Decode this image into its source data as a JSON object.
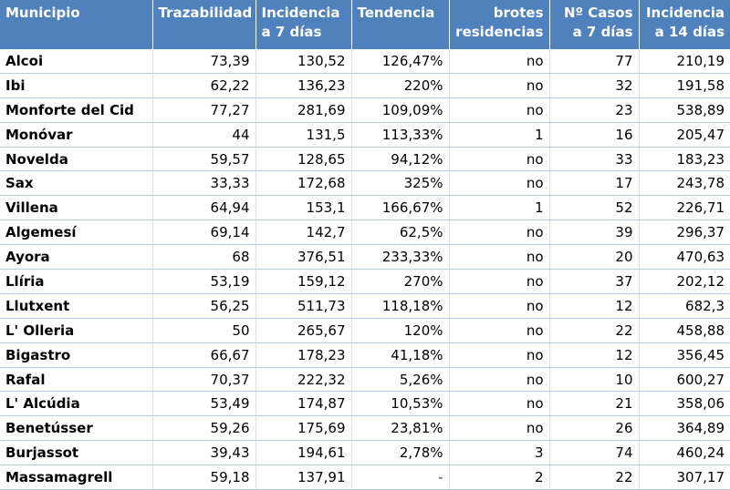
{
  "header": {
    "municipio": "Municipio",
    "trazabilidad": "Trazabilidad",
    "incidencia7_line1": "Incidencia",
    "incidencia7_line2": "a 7 días",
    "tendencia": "Tendencia",
    "brotes_line1": "brotes",
    "brotes_line2": "residencias",
    "casos_line1": "Nº Casos",
    "casos_line2": "a 7 días",
    "incidencia14_line1": "Incidencia",
    "incidencia14_line2": "a 14 días"
  },
  "rows": [
    {
      "municipio": "Alcoi",
      "trazabilidad": "73,39",
      "incidencia7": "130,52",
      "tendencia": "126,47%",
      "brotes": "no",
      "casos": "77",
      "incidencia14": "210,19"
    },
    {
      "municipio": "Ibi",
      "trazabilidad": "62,22",
      "incidencia7": "136,23",
      "tendencia": "220%",
      "brotes": "no",
      "casos": "32",
      "incidencia14": "191,58"
    },
    {
      "municipio": "Monforte del Cid",
      "trazabilidad": "77,27",
      "incidencia7": "281,69",
      "tendencia": "109,09%",
      "brotes": "no",
      "casos": "23",
      "incidencia14": "538,89"
    },
    {
      "municipio": "Monóvar",
      "trazabilidad": "44",
      "incidencia7": "131,5",
      "tendencia": "113,33%",
      "brotes": "1",
      "casos": "16",
      "incidencia14": "205,47"
    },
    {
      "municipio": "Novelda",
      "trazabilidad": "59,57",
      "incidencia7": "128,65",
      "tendencia": "94,12%",
      "brotes": "no",
      "casos": "33",
      "incidencia14": "183,23"
    },
    {
      "municipio": "Sax",
      "trazabilidad": "33,33",
      "incidencia7": "172,68",
      "tendencia": "325%",
      "brotes": "no",
      "casos": "17",
      "incidencia14": "243,78"
    },
    {
      "municipio": "Villena",
      "trazabilidad": "64,94",
      "incidencia7": "153,1",
      "tendencia": "166,67%",
      "brotes": "1",
      "casos": "52",
      "incidencia14": "226,71"
    },
    {
      "municipio": "Algemesí",
      "trazabilidad": "69,14",
      "incidencia7": "142,7",
      "tendencia": "62,5%",
      "brotes": "no",
      "casos": "39",
      "incidencia14": "296,37"
    },
    {
      "municipio": "Ayora",
      "trazabilidad": "68",
      "incidencia7": "376,51",
      "tendencia": "233,33%",
      "brotes": "no",
      "casos": "20",
      "incidencia14": "470,63"
    },
    {
      "municipio": "Llíria",
      "trazabilidad": "53,19",
      "incidencia7": "159,12",
      "tendencia": "270%",
      "brotes": "no",
      "casos": "37",
      "incidencia14": "202,12"
    },
    {
      "municipio": "Llutxent",
      "trazabilidad": "56,25",
      "incidencia7": "511,73",
      "tendencia": "118,18%",
      "brotes": "no",
      "casos": "12",
      "incidencia14": "682,3"
    },
    {
      "municipio": "L' Olleria",
      "trazabilidad": "50",
      "incidencia7": "265,67",
      "tendencia": "120%",
      "brotes": "no",
      "casos": "22",
      "incidencia14": "458,88"
    },
    {
      "municipio": "Bigastro",
      "trazabilidad": "66,67",
      "incidencia7": "178,23",
      "tendencia": "41,18%",
      "brotes": "no",
      "casos": "12",
      "incidencia14": "356,45"
    },
    {
      "municipio": "Rafal",
      "trazabilidad": "70,37",
      "incidencia7": "222,32",
      "tendencia": "5,26%",
      "brotes": "no",
      "casos": "10",
      "incidencia14": "600,27"
    },
    {
      "municipio": "L' Alcúdia",
      "trazabilidad": "53,49",
      "incidencia7": "174,87",
      "tendencia": "10,53%",
      "brotes": "no",
      "casos": "21",
      "incidencia14": "358,06"
    },
    {
      "municipio": "Benetússer",
      "trazabilidad": "59,26",
      "incidencia7": "175,69",
      "tendencia": "23,81%",
      "brotes": "no",
      "casos": "26",
      "incidencia14": "364,89"
    },
    {
      "municipio": "Burjassot",
      "trazabilidad": "39,43",
      "incidencia7": "194,61",
      "tendencia": "2,78%",
      "brotes": "3",
      "casos": "74",
      "incidencia14": "460,24"
    },
    {
      "municipio": "Massamagrell",
      "trazabilidad": "59,18",
      "incidencia7": "137,91",
      "tendencia": "-",
      "brotes": "2",
      "casos": "22",
      "incidencia14": "307,17"
    }
  ],
  "colors": {
    "header_bg": "#4f81bd",
    "header_text": "#ffffff",
    "row_border": "#b8cce4"
  }
}
